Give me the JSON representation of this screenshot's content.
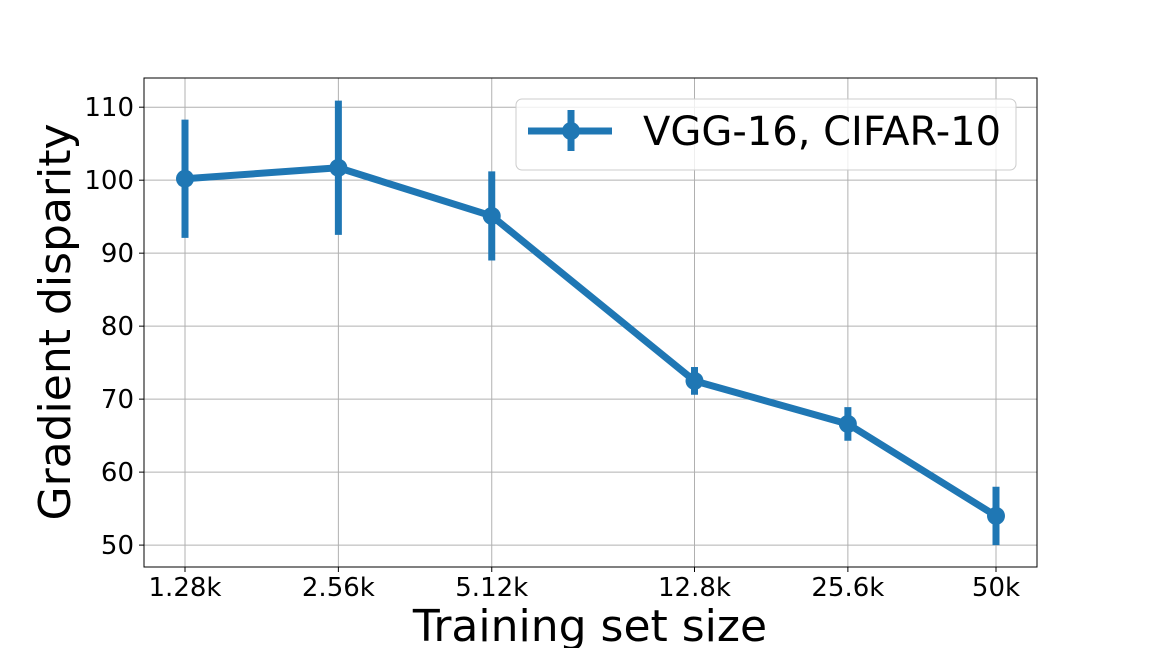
{
  "chart_data": {
    "type": "line",
    "categories": [
      "1.28k",
      "2.56k",
      "5.12k",
      "12.8k",
      "25.6k",
      "50k"
    ],
    "x": [
      1280,
      2560,
      5120,
      12800,
      25600,
      50000
    ],
    "xscale": "log",
    "series": [
      {
        "name": "VGG-16, CIFAR-10",
        "color": "#1f77b4",
        "values": [
          100.2,
          101.7,
          95.1,
          72.5,
          66.6,
          54.0
        ],
        "error": [
          8.1,
          9.2,
          6.1,
          1.9,
          2.3,
          4.0
        ]
      }
    ],
    "xlabel": "Training set size",
    "ylabel": "Gradient disparity",
    "yticks": [
      50,
      60,
      70,
      80,
      90,
      100,
      110
    ],
    "ylim": [
      47,
      114
    ],
    "grid": true,
    "legend": "top-right"
  }
}
